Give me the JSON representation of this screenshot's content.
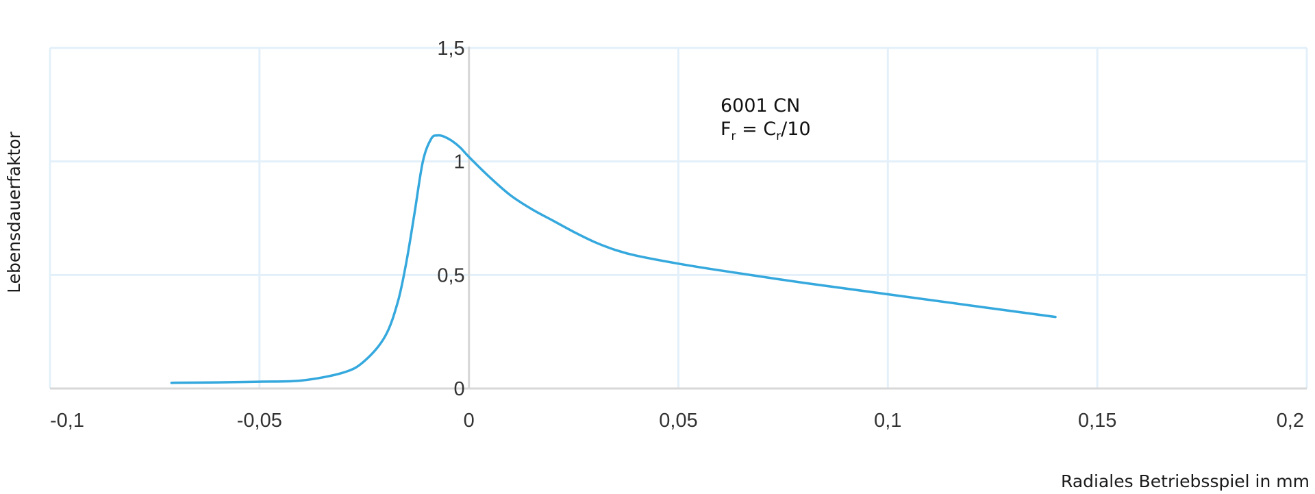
{
  "chart_data": {
    "type": "line",
    "xlabel": "Radiales Betriebsspiel in mm",
    "ylabel": "Lebensdauerfaktor",
    "xlim": [
      -0.1,
      0.2
    ],
    "ylim": [
      0,
      1.5
    ],
    "x_ticks": [
      {
        "value": -0.1,
        "label": "-0,1"
      },
      {
        "value": -0.05,
        "label": "-0,05"
      },
      {
        "value": 0,
        "label": "0"
      },
      {
        "value": 0.05,
        "label": "0,05"
      },
      {
        "value": 0.1,
        "label": "0,1"
      },
      {
        "value": 0.15,
        "label": "0,15"
      },
      {
        "value": 0.2,
        "label": "0,2"
      }
    ],
    "y_ticks": [
      {
        "value": 0,
        "label": "0"
      },
      {
        "value": 0.5,
        "label": "0,5"
      },
      {
        "value": 1,
        "label": "1"
      },
      {
        "value": 1.5,
        "label": "1,5"
      }
    ],
    "grid": true,
    "annotation": {
      "line1": "6001 CN",
      "line2": {
        "F": "F",
        "sub1": "r",
        "eq": " = C",
        "sub2": "r",
        "tail": "/10"
      }
    },
    "series": [
      {
        "color": "#35a8dd",
        "x": [
          -0.071,
          -0.06,
          -0.05,
          -0.04,
          -0.03,
          -0.025,
          -0.02,
          -0.017,
          -0.015,
          -0.013,
          -0.011,
          -0.009,
          -0.0075,
          -0.006,
          -0.004,
          -0.002,
          0,
          0.005,
          0.01,
          0.015,
          0.02,
          0.025,
          0.03,
          0.035,
          0.04,
          0.05,
          0.06,
          0.08,
          0.1,
          0.12,
          0.14
        ],
        "y": [
          0.025,
          0.027,
          0.03,
          0.035,
          0.07,
          0.12,
          0.23,
          0.38,
          0.55,
          0.77,
          1.0,
          1.1,
          1.115,
          1.11,
          1.09,
          1.06,
          1.02,
          0.93,
          0.85,
          0.79,
          0.74,
          0.69,
          0.645,
          0.61,
          0.585,
          0.55,
          0.52,
          0.465,
          0.415,
          0.365,
          0.315
        ]
      }
    ]
  }
}
